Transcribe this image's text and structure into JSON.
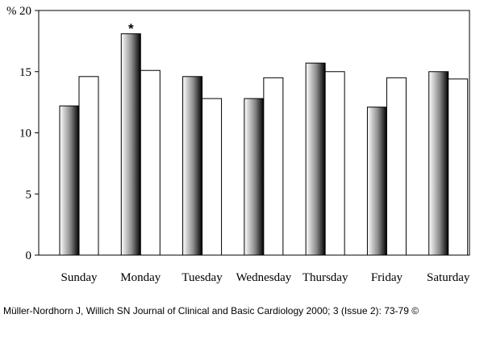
{
  "chart_data": {
    "type": "bar",
    "ylabel": "%",
    "ylim": [
      0,
      20
    ],
    "yticks": [
      0,
      5,
      10,
      15,
      20
    ],
    "grid": false,
    "categories": [
      "Sunday",
      "Monday",
      "Tuesday",
      "Wednesday",
      "Thursday",
      "Friday",
      "Saturday"
    ],
    "series": [
      {
        "style": "shaded",
        "values": [
          12.2,
          18.1,
          14.6,
          12.8,
          15.7,
          12.1,
          15.0
        ]
      },
      {
        "style": "white",
        "values": [
          14.6,
          15.1,
          12.8,
          14.5,
          15.0,
          14.5,
          14.4
        ]
      }
    ],
    "annotations": [
      {
        "category": "Monday",
        "series": 0,
        "text": "*"
      }
    ]
  },
  "citation": "Müller-Nordhorn J, Willich SN Journal of Clinical and Basic Cardiology 2000; 3 (Issue 2): 73-79 ©"
}
